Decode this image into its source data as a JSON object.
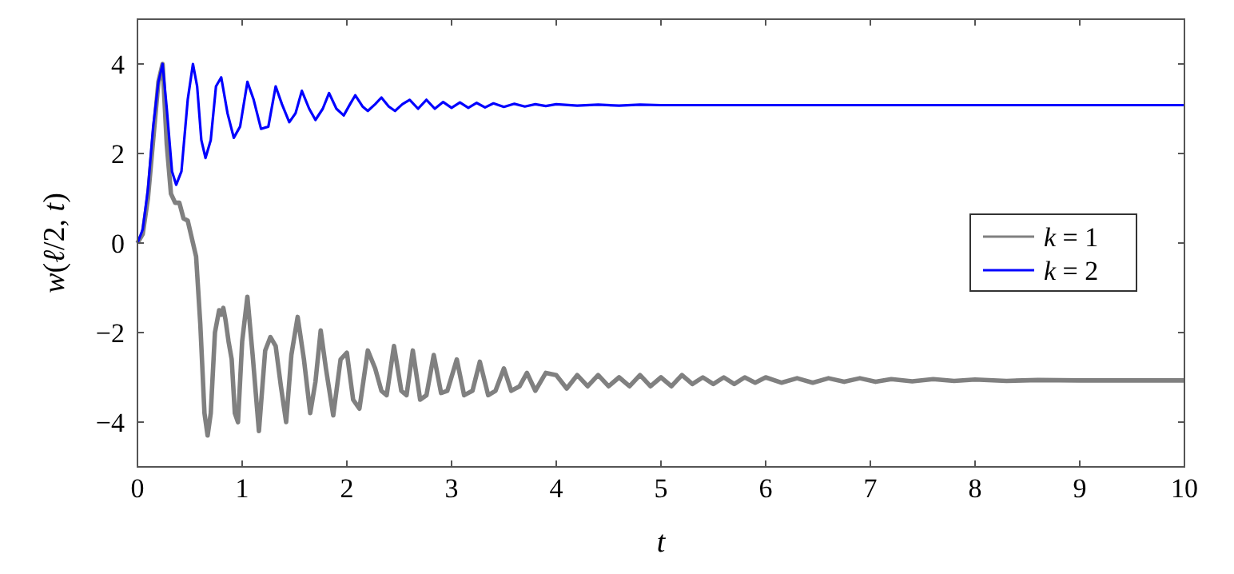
{
  "chart_data": {
    "type": "line",
    "xlabel": "t",
    "ylabel": "w(ℓ/2, t)",
    "xlim": [
      0,
      10
    ],
    "ylim": [
      -5,
      5
    ],
    "xticks": [
      0,
      1,
      2,
      3,
      4,
      5,
      6,
      7,
      8,
      9,
      10
    ],
    "yticks": [
      -4,
      -2,
      0,
      2,
      4
    ],
    "grid": false,
    "legend": "right",
    "marker": "none",
    "line_style": "solid",
    "series": [
      {
        "name": "k = 1",
        "color": "#808080",
        "x": [
          0,
          0.05,
          0.1,
          0.15,
          0.2,
          0.24,
          0.28,
          0.32,
          0.36,
          0.4,
          0.44,
          0.48,
          0.52,
          0.56,
          0.6,
          0.64,
          0.67,
          0.7,
          0.74,
          0.78,
          0.8,
          0.82,
          0.84,
          0.87,
          0.9,
          0.93,
          0.96,
          1.0,
          1.05,
          1.1,
          1.16,
          1.22,
          1.27,
          1.32,
          1.37,
          1.42,
          1.47,
          1.53,
          1.59,
          1.65,
          1.7,
          1.75,
          1.8,
          1.87,
          1.94,
          2.0,
          2.06,
          2.12,
          2.2,
          2.27,
          2.33,
          2.38,
          2.45,
          2.52,
          2.57,
          2.63,
          2.7,
          2.76,
          2.83,
          2.9,
          2.96,
          3.05,
          3.12,
          3.2,
          3.27,
          3.35,
          3.42,
          3.5,
          3.57,
          3.65,
          3.72,
          3.8,
          3.9,
          4.0,
          4.1,
          4.2,
          4.3,
          4.4,
          4.5,
          4.6,
          4.7,
          4.8,
          4.9,
          5.0,
          5.1,
          5.2,
          5.3,
          5.4,
          5.5,
          5.6,
          5.7,
          5.8,
          5.9,
          6.0,
          6.15,
          6.3,
          6.45,
          6.6,
          6.75,
          6.9,
          7.05,
          7.2,
          7.4,
          7.6,
          7.8,
          8.0,
          8.3,
          8.6,
          9.0,
          9.5,
          10
        ],
        "values": [
          0,
          0.2,
          1.0,
          2.3,
          3.6,
          4.0,
          2.2,
          1.1,
          0.9,
          0.9,
          0.55,
          0.5,
          0.1,
          -0.3,
          -1.8,
          -3.8,
          -4.3,
          -3.8,
          -2.0,
          -1.5,
          -1.6,
          -1.45,
          -1.7,
          -2.2,
          -2.6,
          -3.8,
          -4.0,
          -2.2,
          -1.2,
          -2.5,
          -4.2,
          -2.4,
          -2.1,
          -2.3,
          -3.2,
          -4.0,
          -2.5,
          -1.65,
          -2.6,
          -3.8,
          -3.1,
          -1.95,
          -2.8,
          -3.85,
          -2.6,
          -2.45,
          -3.5,
          -3.7,
          -2.4,
          -2.8,
          -3.3,
          -3.4,
          -2.3,
          -3.3,
          -3.4,
          -2.4,
          -3.5,
          -3.4,
          -2.5,
          -3.35,
          -3.3,
          -2.6,
          -3.4,
          -3.3,
          -2.65,
          -3.4,
          -3.3,
          -2.8,
          -3.3,
          -3.2,
          -2.9,
          -3.3,
          -2.9,
          -2.95,
          -3.25,
          -2.95,
          -3.2,
          -2.95,
          -3.2,
          -3.0,
          -3.2,
          -2.95,
          -3.2,
          -3.0,
          -3.2,
          -2.95,
          -3.15,
          -3.0,
          -3.15,
          -3.0,
          -3.15,
          -3.0,
          -3.12,
          -3.0,
          -3.12,
          -3.02,
          -3.12,
          -3.02,
          -3.1,
          -3.02,
          -3.1,
          -3.04,
          -3.09,
          -3.04,
          -3.08,
          -3.05,
          -3.08,
          -3.06,
          -3.07,
          -3.07,
          -3.07
        ]
      },
      {
        "name": "k = 2",
        "color": "#0000ff",
        "x": [
          0,
          0.05,
          0.1,
          0.15,
          0.2,
          0.24,
          0.28,
          0.33,
          0.37,
          0.42,
          0.48,
          0.53,
          0.57,
          0.61,
          0.65,
          0.7,
          0.75,
          0.8,
          0.86,
          0.92,
          0.98,
          1.05,
          1.11,
          1.18,
          1.25,
          1.32,
          1.38,
          1.45,
          1.51,
          1.57,
          1.64,
          1.7,
          1.77,
          1.83,
          1.9,
          1.97,
          2.03,
          2.08,
          2.15,
          2.2,
          2.27,
          2.33,
          2.4,
          2.46,
          2.53,
          2.6,
          2.68,
          2.76,
          2.84,
          2.92,
          3.0,
          3.08,
          3.16,
          3.24,
          3.32,
          3.4,
          3.5,
          3.6,
          3.7,
          3.8,
          3.9,
          4.0,
          4.2,
          4.4,
          4.6,
          4.8,
          5.0,
          5.3,
          5.6,
          6.0,
          6.5,
          7,
          8,
          9,
          10
        ],
        "values": [
          0,
          0.3,
          1.2,
          2.6,
          3.6,
          4.0,
          3.0,
          1.6,
          1.3,
          1.6,
          3.2,
          4.0,
          3.5,
          2.3,
          1.9,
          2.3,
          3.5,
          3.7,
          2.9,
          2.35,
          2.6,
          3.6,
          3.2,
          2.55,
          2.6,
          3.5,
          3.1,
          2.7,
          2.9,
          3.4,
          3.0,
          2.75,
          3.0,
          3.35,
          3.0,
          2.85,
          3.1,
          3.3,
          3.05,
          2.95,
          3.1,
          3.25,
          3.05,
          2.95,
          3.1,
          3.2,
          3.0,
          3.2,
          3.0,
          3.15,
          3.02,
          3.14,
          3.02,
          3.13,
          3.03,
          3.12,
          3.04,
          3.11,
          3.05,
          3.1,
          3.06,
          3.1,
          3.07,
          3.09,
          3.07,
          3.09,
          3.08,
          3.08,
          3.08,
          3.08,
          3.08,
          3.08,
          3.08,
          3.08,
          3.08
        ]
      }
    ]
  }
}
